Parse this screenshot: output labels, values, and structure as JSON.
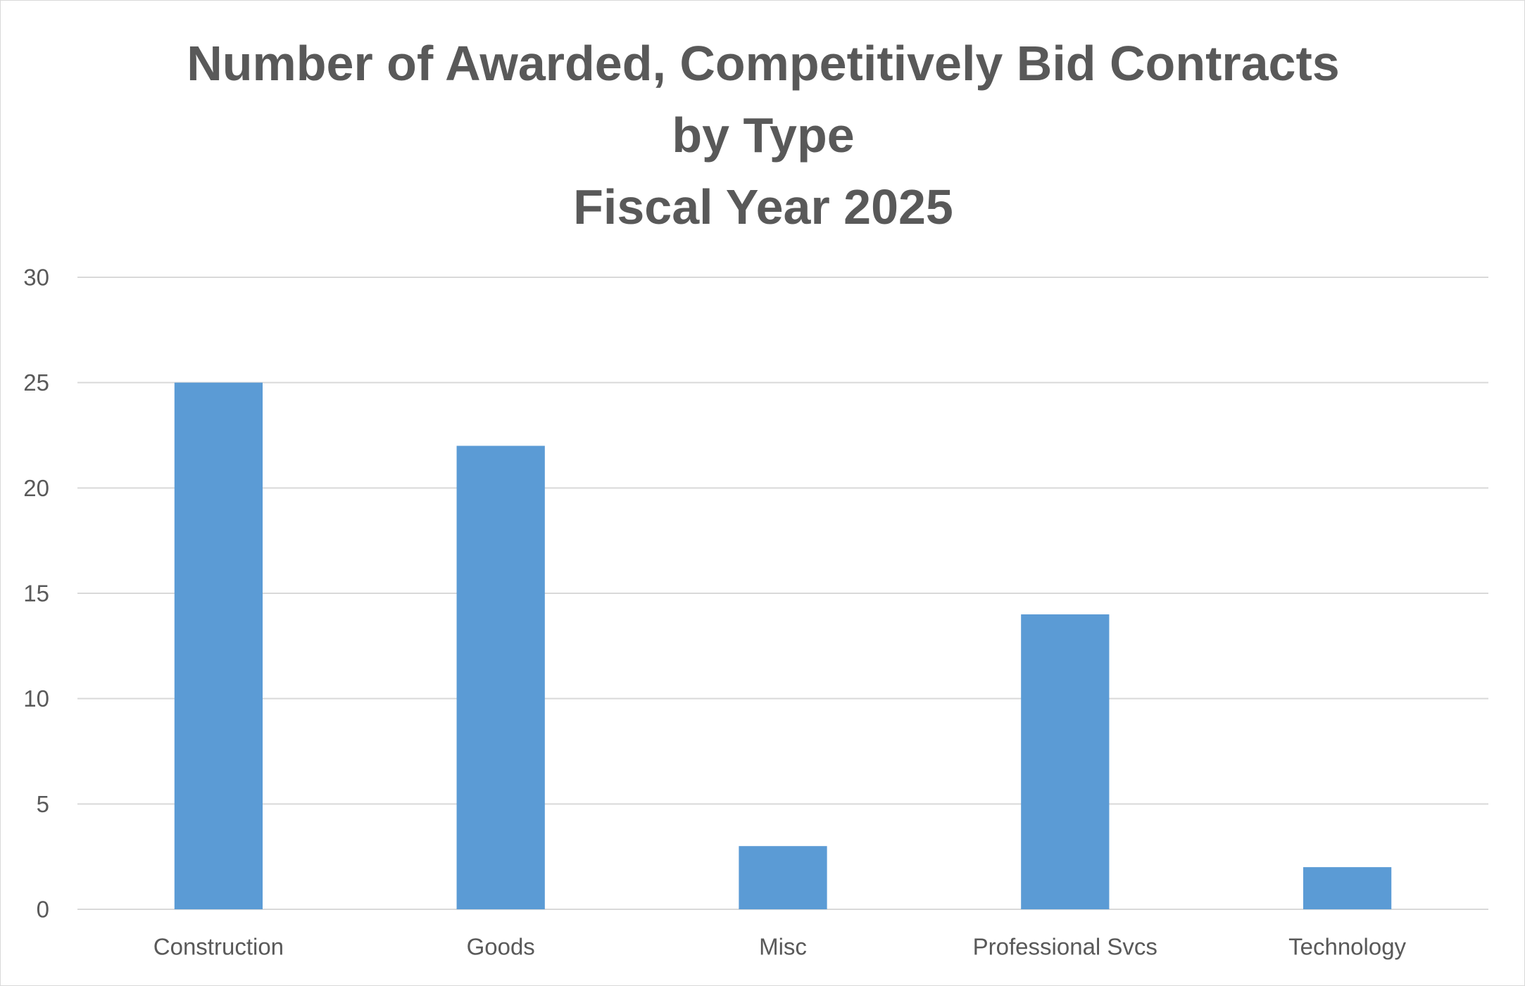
{
  "chart_data": {
    "type": "bar",
    "title": [
      "Number of Awarded, Competitively Bid Contracts",
      "by Type",
      "Fiscal Year 2025"
    ],
    "xlabel": "",
    "ylabel": "",
    "categories": [
      "Construction",
      "Goods",
      "Misc",
      "Professional Svcs",
      "Technology"
    ],
    "values": [
      25,
      22,
      3,
      14,
      2
    ],
    "ylim": [
      0,
      30
    ],
    "yticks": [
      0,
      5,
      10,
      15,
      20,
      25,
      30
    ],
    "grid": true,
    "legend": "none",
    "colors": {
      "bar": "#5b9bd5",
      "grid": "#d9d9d9",
      "text": "#595959",
      "border": "#d9d9d9"
    }
  }
}
